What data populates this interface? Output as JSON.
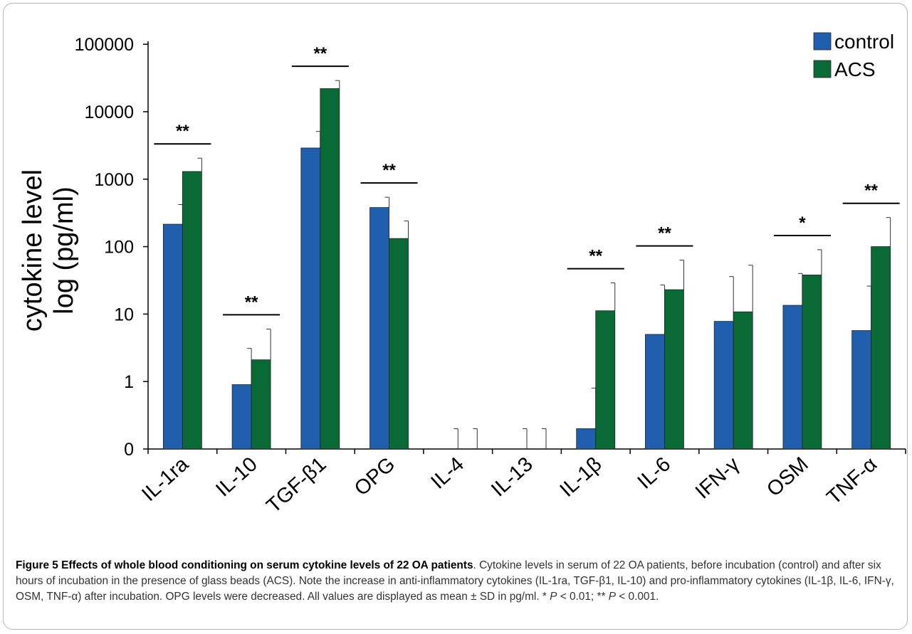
{
  "chart_data": {
    "type": "bar",
    "ylabel_lines": [
      "cytokine level",
      "log (pg/ml)"
    ],
    "yscale": "log",
    "yticks": [
      "0",
      "1",
      "10",
      "100",
      "1000",
      "10000",
      "100000"
    ],
    "categories": [
      "IL-1ra",
      "IL-10",
      "TGF-β1",
      "OPG",
      "IL-4",
      "IL-13",
      "IL-1β",
      "IL-6",
      "IFN-γ",
      "OSM",
      "TNF-α"
    ],
    "series": [
      {
        "name": "control",
        "color": "#1f5fad",
        "values": [
          215,
          0.9,
          2900,
          380,
          0,
          0,
          0.2,
          5,
          7.8,
          13.5,
          5.7
        ],
        "sd_upper": [
          420,
          3.1,
          5100,
          540,
          0.2,
          0.2,
          0.8,
          27,
          36,
          40,
          26
        ]
      },
      {
        "name": "ACS",
        "color": "#0a6a35",
        "values": [
          1300,
          2.1,
          22000,
          132,
          0,
          0,
          11.2,
          23,
          10.8,
          38,
          100
        ],
        "sd_upper": [
          2050,
          6,
          29000,
          240,
          0.2,
          0.2,
          29,
          63,
          53,
          90,
          270
        ]
      }
    ],
    "significance": [
      {
        "category": "IL-1ra",
        "label": "**"
      },
      {
        "category": "IL-10",
        "label": "**"
      },
      {
        "category": "TGF-β1",
        "label": "**"
      },
      {
        "category": "OPG",
        "label": "**"
      },
      {
        "category": "IL-1β",
        "label": "**"
      },
      {
        "category": "IL-6",
        "label": "**"
      },
      {
        "category": "OSM",
        "label": "*"
      },
      {
        "category": "TNF-α",
        "label": "**"
      }
    ],
    "legend_position": "top-right",
    "grid": false
  },
  "caption": {
    "title": "Figure 5 Effects of whole blood conditioning on serum cytokine levels of 22 OA patients",
    "body": ". Cytokine levels in serum of 22 OA patients, before incubation (control) and after six hours of incubation in the presence of glass beads (ACS). Note the increase in anti-inflammatory cytokines (IL-1ra, TGF-β1, IL-10) and pro-inflammatory cytokines (IL-1β, IL-6, IFN-γ, OSM, TNF-α) after incubation. OPG levels were decreased. All values are displayed as mean ± SD in pg/ml. * ",
    "p_symbol_1": "P",
    "p_text_1": " < 0.01; ** ",
    "p_symbol_2": "P",
    "p_text_2": " < 0.001."
  }
}
